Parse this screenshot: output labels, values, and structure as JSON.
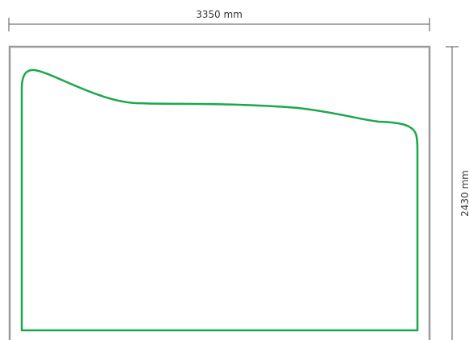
{
  "dimensions": {
    "width_label": "3350 mm",
    "height_label": "2430 mm"
  },
  "colors": {
    "dimension_line": "#555555",
    "frame": "#9a9a9a",
    "shape_outline": "#1aa84a",
    "text": "#333333"
  }
}
